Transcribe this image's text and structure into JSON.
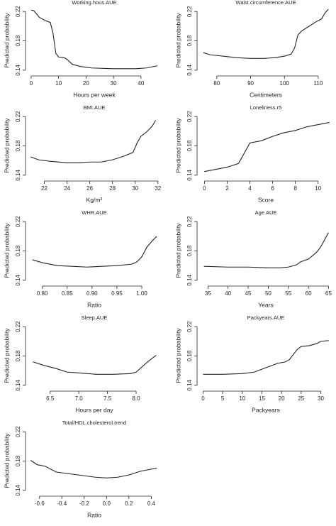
{
  "chart_data": [
    {
      "type": "line",
      "title": "Working.hous.AUE",
      "xlabel": "Hours per week",
      "ylabel": "Predicted probability",
      "color": "#222222",
      "x": [
        0,
        1,
        3,
        5,
        7,
        8,
        9,
        10,
        12,
        13,
        15,
        18,
        22,
        30,
        38,
        42,
        46
      ],
      "values": [
        0.222,
        0.221,
        0.212,
        0.208,
        0.205,
        0.19,
        0.163,
        0.158,
        0.157,
        0.155,
        0.148,
        0.145,
        0.143,
        0.142,
        0.142,
        0.143,
        0.146
      ],
      "xlim": [
        -1,
        47
      ],
      "xticks": [
        0,
        10,
        20,
        30,
        40
      ],
      "ylim": [
        0.135,
        0.226
      ],
      "yticks": [
        0.14,
        0.18,
        0.22
      ]
    },
    {
      "type": "line",
      "title": "Waist.circumference.AUE",
      "xlabel": "Centimeters",
      "ylabel": "Predicted probability",
      "color": "#222222",
      "x": [
        76,
        78,
        82,
        86,
        90,
        94,
        97,
        100,
        102,
        103,
        104,
        105,
        107,
        109,
        111,
        112,
        113
      ],
      "values": [
        0.164,
        0.161,
        0.159,
        0.157,
        0.156,
        0.156,
        0.157,
        0.159,
        0.162,
        0.17,
        0.188,
        0.193,
        0.199,
        0.205,
        0.21,
        0.218,
        0.223
      ],
      "xlim": [
        75,
        114
      ],
      "xticks": [
        80,
        90,
        100,
        110
      ],
      "ylim": [
        0.135,
        0.226
      ],
      "yticks": [
        0.14,
        0.18,
        0.22
      ]
    },
    {
      "type": "line",
      "title": "BMI.AUE",
      "xlabel": "Kg/m²",
      "ylabel": "Predicted probability",
      "color": "#222222",
      "x": [
        20.8,
        21.5,
        22.5,
        24,
        25,
        26,
        27,
        28,
        29,
        29.8,
        30.2,
        30.5,
        31,
        31.5,
        31.8
      ],
      "values": [
        0.165,
        0.161,
        0.159,
        0.157,
        0.157,
        0.158,
        0.158,
        0.161,
        0.166,
        0.171,
        0.185,
        0.193,
        0.199,
        0.207,
        0.215
      ],
      "xlim": [
        20.6,
        32.2
      ],
      "xticks": [
        22,
        24,
        26,
        28,
        30,
        32
      ],
      "ylim": [
        0.135,
        0.226
      ],
      "yticks": [
        0.14,
        0.18,
        0.22
      ]
    },
    {
      "type": "line",
      "title": "Loneliness.r5",
      "xlabel": "Score",
      "ylabel": "Predicted probability",
      "color": "#222222",
      "x": [
        0,
        1,
        2,
        3,
        4,
        5,
        6,
        7,
        8,
        9,
        10,
        11
      ],
      "values": [
        0.145,
        0.148,
        0.151,
        0.156,
        0.184,
        0.187,
        0.193,
        0.198,
        0.201,
        0.206,
        0.209,
        0.212
      ],
      "xlim": [
        -0.4,
        11.2
      ],
      "xticks": [
        0,
        2,
        4,
        6,
        8,
        10
      ],
      "ylim": [
        0.135,
        0.226
      ],
      "yticks": [
        0.14,
        0.18,
        0.22
      ]
    },
    {
      "type": "line",
      "title": "WHR.AUE",
      "xlabel": "Ratio",
      "ylabel": "Predicted probability",
      "color": "#222222",
      "x": [
        0.78,
        0.8,
        0.83,
        0.86,
        0.89,
        0.92,
        0.95,
        0.98,
        0.99,
        1.0,
        1.01,
        1.02,
        1.03
      ],
      "values": [
        0.168,
        0.164,
        0.16,
        0.159,
        0.158,
        0.159,
        0.16,
        0.162,
        0.165,
        0.172,
        0.185,
        0.193,
        0.2
      ],
      "xlim": [
        0.772,
        1.037
      ],
      "xticks": [
        {
          "value": 0.8,
          "label": "0.80"
        },
        0.85,
        {
          "value": 0.9,
          "label": "0.90"
        },
        0.95,
        {
          "value": 1,
          "label": "1.00"
        }
      ],
      "ylim": [
        0.135,
        0.226
      ],
      "yticks": [
        0.14,
        0.18,
        0.22
      ]
    },
    {
      "type": "line",
      "title": "Age.AUE",
      "xlabel": "Years",
      "ylabel": "Predicted probability",
      "color": "#222222",
      "x": [
        34,
        40,
        45,
        50,
        53,
        55,
        57,
        58,
        60,
        62,
        63,
        64,
        65
      ],
      "values": [
        0.159,
        0.158,
        0.158,
        0.157,
        0.157,
        0.158,
        0.161,
        0.165,
        0.169,
        0.178,
        0.185,
        0.195,
        0.205
      ],
      "xlim": [
        33,
        65.8
      ],
      "xticks": [
        35,
        40,
        45,
        50,
        55,
        60,
        65
      ],
      "ylim": [
        0.135,
        0.226
      ],
      "yticks": [
        0.14,
        0.18,
        0.22
      ]
    },
    {
      "type": "line",
      "title": "Sleep.AUE",
      "xlabel": "Hours per day",
      "ylabel": "Predicted probability",
      "color": "#222222",
      "x": [
        6.2,
        6.4,
        6.6,
        6.8,
        7,
        7.3,
        7.6,
        7.9,
        8.0,
        8.1,
        8.2,
        8.3,
        8.35
      ],
      "values": [
        0.172,
        0.167,
        0.163,
        0.158,
        0.157,
        0.155,
        0.155,
        0.156,
        0.158,
        0.165,
        0.172,
        0.178,
        0.181
      ],
      "xlim": [
        6.12,
        8.42
      ],
      "xticks": [
        6.5,
        {
          "value": 7,
          "label": "7.0"
        },
        7.5,
        {
          "value": 8,
          "label": "8.0"
        }
      ],
      "ylim": [
        0.135,
        0.226
      ],
      "yticks": [
        0.14,
        0.18,
        0.22
      ]
    },
    {
      "type": "line",
      "title": "Packyears.AUE",
      "xlabel": "Packyears",
      "ylabel": "Predicted probability",
      "color": "#222222",
      "x": [
        0,
        5,
        10,
        13,
        15,
        17,
        19,
        21,
        22,
        23,
        24,
        25,
        27,
        29,
        30,
        32
      ],
      "values": [
        0.155,
        0.155,
        0.156,
        0.158,
        0.162,
        0.166,
        0.17,
        0.172,
        0.175,
        0.182,
        0.189,
        0.193,
        0.194,
        0.197,
        0.2,
        0.201
      ],
      "xlim": [
        -0.8,
        32.8
      ],
      "xticks": [
        0,
        5,
        10,
        15,
        20,
        25,
        30
      ],
      "ylim": [
        0.135,
        0.226
      ],
      "yticks": [
        0.14,
        0.18,
        0.22
      ]
    },
    {
      "type": "line",
      "title": "Total/HDL.cholesterol.trend",
      "xlabel": "Ratio",
      "ylabel": "Predicted probability",
      "color": "#222222",
      "x": [
        -0.68,
        -0.62,
        -0.55,
        -0.45,
        -0.3,
        -0.1,
        0,
        0.1,
        0.2,
        0.3,
        0.4,
        0.45
      ],
      "values": [
        0.181,
        0.175,
        0.173,
        0.165,
        0.162,
        0.158,
        0.157,
        0.158,
        0.161,
        0.166,
        0.169,
        0.17
      ],
      "xlim": [
        -0.7,
        0.48
      ],
      "xticks": [
        -0.6,
        -0.4,
        -0.2,
        {
          "value": 0,
          "label": "0.0"
        },
        0.2,
        0.4
      ],
      "ylim": [
        0.135,
        0.226
      ],
      "yticks": [
        0.14,
        0.18,
        0.22
      ]
    }
  ]
}
